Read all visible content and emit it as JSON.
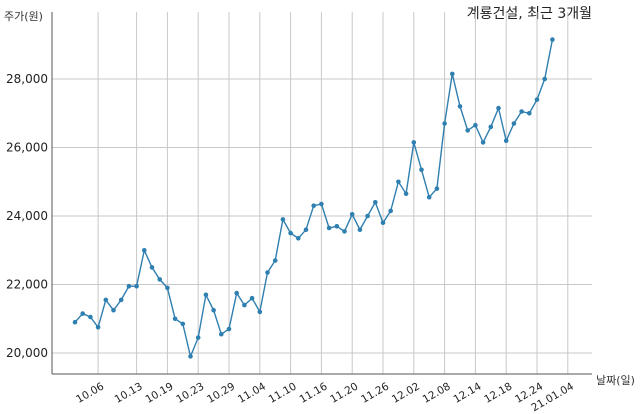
{
  "chart_data": {
    "type": "line",
    "title": "계룡건설, 최근 3개월",
    "ylabel": "주가(원)",
    "xlabel": "날짜(일)",
    "ylim": [
      19400,
      29600
    ],
    "yticks": [
      20000,
      22000,
      24000,
      26000,
      28000
    ],
    "ytick_labels": [
      "20,000",
      "22,000",
      "24,000",
      "26,000",
      "28,000"
    ],
    "xtick_labels": [
      "10.06",
      "10.13",
      "10.19",
      "10.23",
      "10.29",
      "11.04",
      "11.10",
      "11.16",
      "11.20",
      "11.26",
      "12.02",
      "12.08",
      "12.14",
      "12.18",
      "12.24",
      "21.01.04"
    ],
    "xtick_index": [
      3,
      8,
      12,
      16,
      20,
      24,
      28,
      32,
      36,
      40,
      44,
      48,
      52,
      56,
      60,
      64
    ],
    "grid": "vertical",
    "color": "#2f7fb0",
    "series": [
      {
        "name": "",
        "values": [
          20900,
          21150,
          21050,
          20750,
          21550,
          21250,
          21550,
          21950,
          21950,
          23000,
          22500,
          22150,
          21900,
          21000,
          20850,
          19900,
          20450,
          21700,
          21250,
          20550,
          20700,
          21750,
          21400,
          21600,
          21200,
          22350,
          22700,
          23900,
          23500,
          23350,
          23600,
          24300,
          24350,
          23650,
          23700,
          23550,
          24050,
          23600,
          24000,
          24400,
          23800,
          24150,
          25000,
          24650,
          26150,
          25350,
          24550,
          24800,
          26700,
          28150,
          27200,
          26500,
          26650,
          26150,
          26600,
          27150,
          26200,
          26700,
          27050,
          27000,
          27400,
          28000,
          29150
        ]
      }
    ]
  }
}
